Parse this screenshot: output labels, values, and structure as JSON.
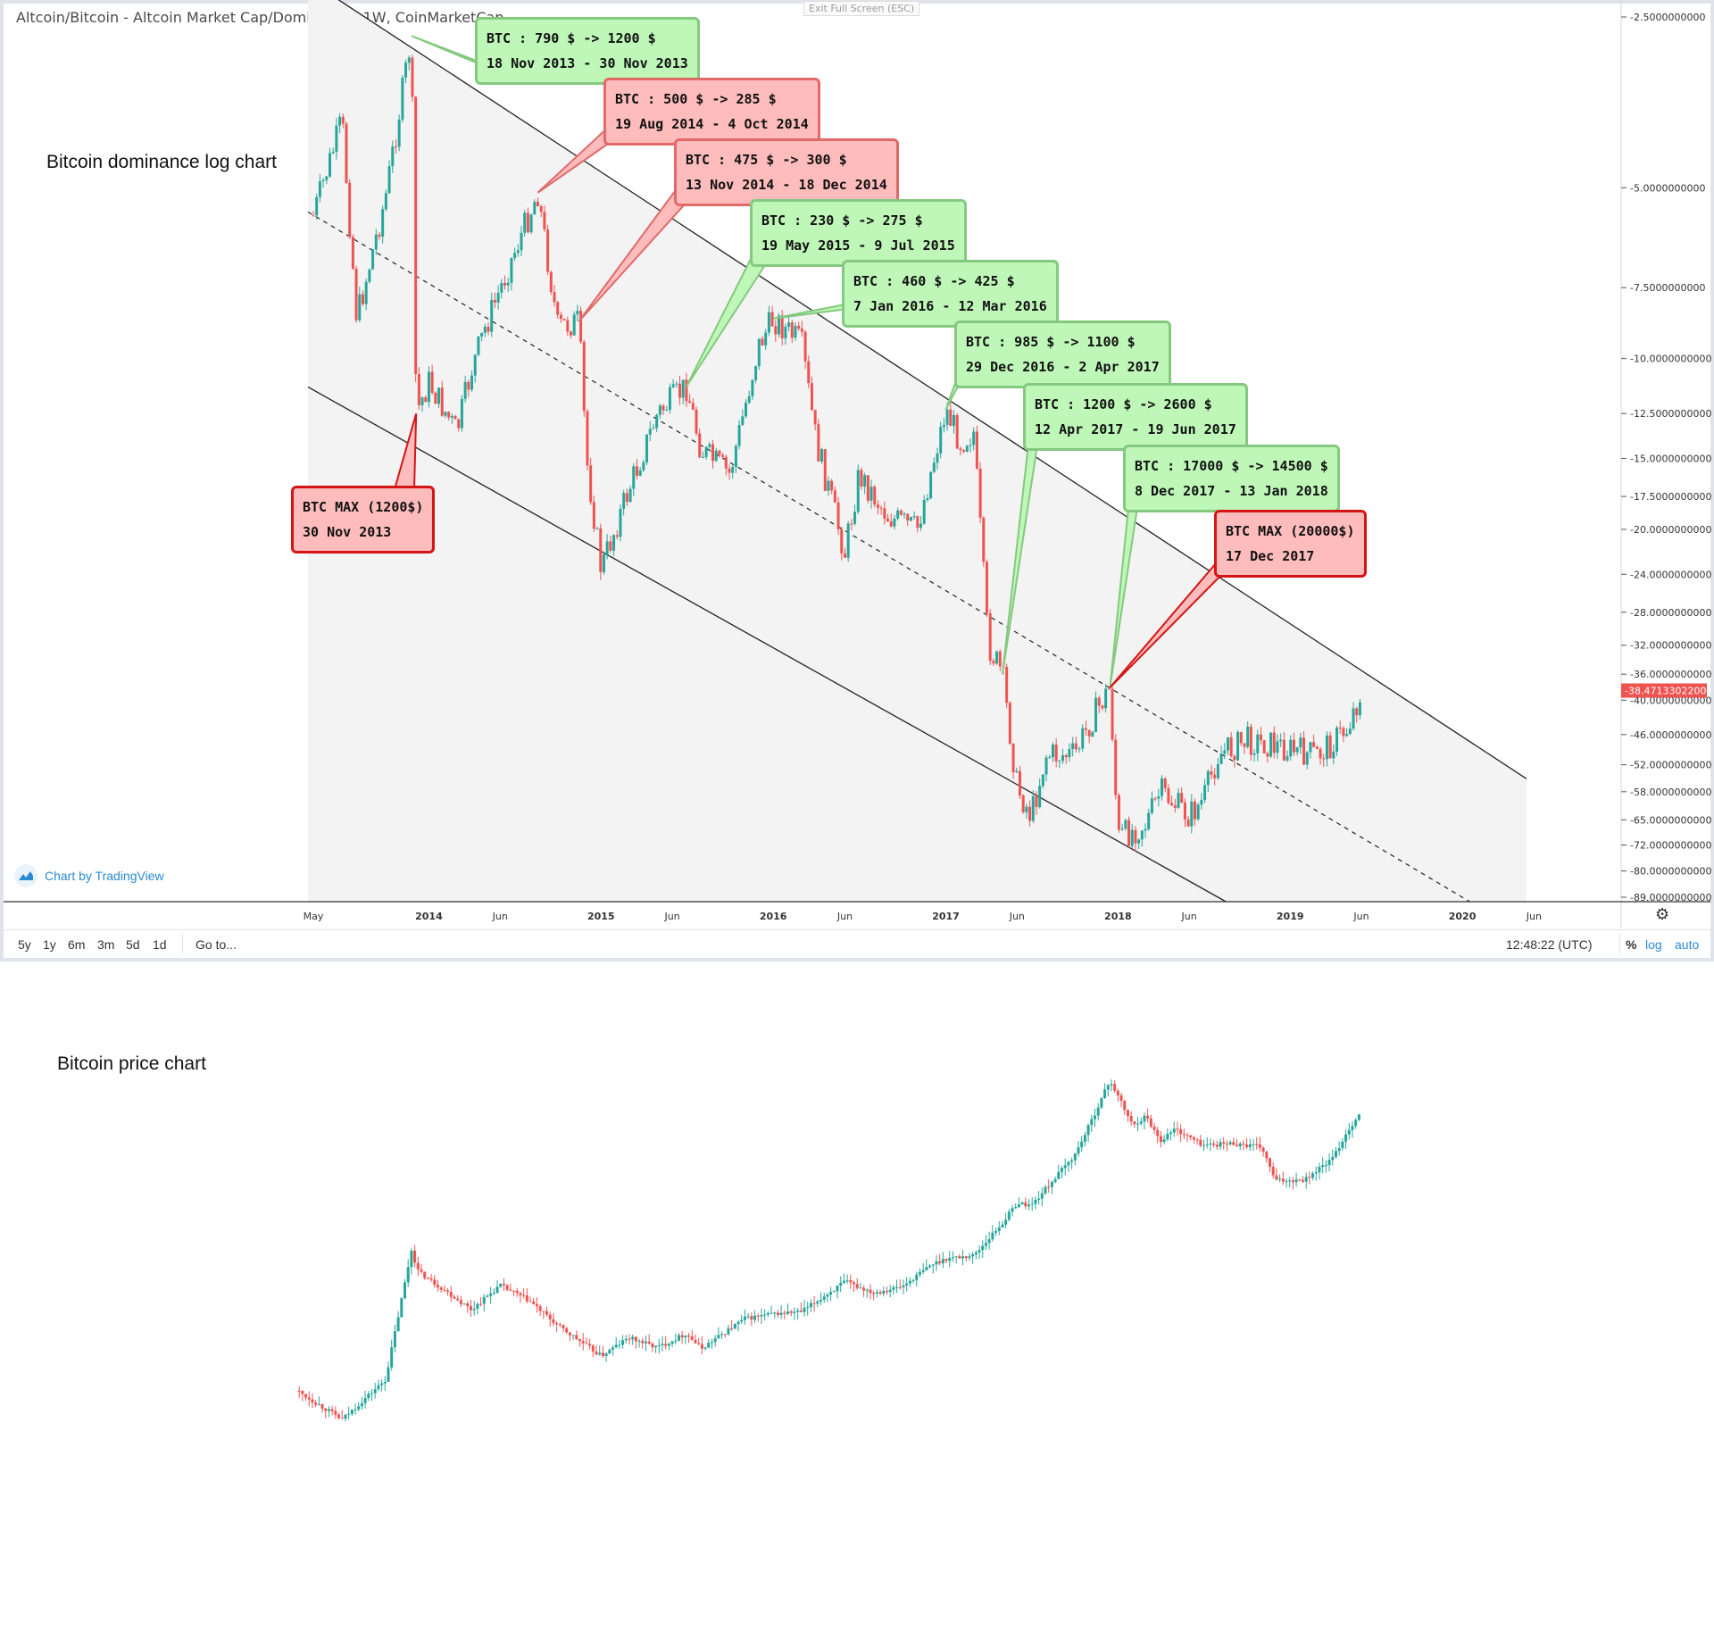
{
  "window": {
    "title": "Altcoin/Bitcoin - Altcoin Market Cap/Dominance, 1W, CoinMarketCap",
    "exit_fullscreen": "Exit Full Screen (ESC)",
    "side_label": "Bitcoin dominance log chart",
    "watermark": "Chart by TradingView"
  },
  "toolbar": {
    "timeframes": [
      "5y",
      "1y",
      "6m",
      "3m",
      "5d",
      "1d"
    ],
    "goto": "Go to...",
    "clock": "12:48:22 (UTC)",
    "percent": "%",
    "log": "log",
    "auto": "auto"
  },
  "colors": {
    "up": "#26a69a",
    "down": "#ef5350",
    "channel_fill": "#f3f3f3",
    "green_callout": "#bff7b9",
    "red_callout": "#ffbcbc",
    "price_tag": "#ef5350"
  },
  "chart_data": [
    {
      "type": "candlestick",
      "scale": "log",
      "interval": "1W",
      "y_axis_labels": [
        "-2.5000000000",
        "-5.0000000000",
        "-7.5000000000",
        "-10.0000000000",
        "-12.5000000000",
        "-15.0000000000",
        "-17.5000000000",
        "-20.0000000000",
        "-24.0000000000",
        "-28.0000000000",
        "-32.0000000000",
        "-36.0000000000",
        "-40.0000000000",
        "-46.0000000000",
        "-52.0000000000",
        "-58.0000000000",
        "-65.0000000000",
        "-72.0000000000",
        "-80.0000000000",
        "-89.0000000000"
      ],
      "x_axis_labels": [
        "May",
        "2014",
        "Jun",
        "2015",
        "Jun",
        "2016",
        "Jun",
        "2017",
        "Jun",
        "2018",
        "Jun",
        "2019",
        "Jun",
        "2020",
        "Jun"
      ],
      "last_value": "-38.4713302200",
      "path": [
        [
          "2013-05",
          -5.6
        ],
        [
          "2013-07",
          -3.8
        ],
        [
          "2013-08",
          -8.5
        ],
        [
          "2013-10",
          -5.2
        ],
        [
          "2013-11-25",
          -2.7
        ],
        [
          "2013-12-05",
          -12.5
        ],
        [
          "2014-01",
          -11.0
        ],
        [
          "2014-03",
          -13.5
        ],
        [
          "2014-04",
          -10.5
        ],
        [
          "2014-05",
          -8.8
        ],
        [
          "2014-07",
          -6.5
        ],
        [
          "2014-08-20",
          -5.1
        ],
        [
          "2014-10",
          -8.8
        ],
        [
          "2014-11-15",
          -8.6
        ],
        [
          "2014-12",
          -15
        ],
        [
          "2015-01",
          -23.5
        ],
        [
          "2015-03",
          -17
        ],
        [
          "2015-05",
          -12.5
        ],
        [
          "2015-07",
          -11.2
        ],
        [
          "2015-08",
          -14.5
        ],
        [
          "2015-10",
          -16
        ],
        [
          "2015-12",
          -9.5
        ],
        [
          "2016-01",
          -8.5
        ],
        [
          "2016-03",
          -9.4
        ],
        [
          "2016-04",
          -14
        ],
        [
          "2016-06",
          -22
        ],
        [
          "2016-07",
          -16
        ],
        [
          "2016-09",
          -19
        ],
        [
          "2016-11",
          -20
        ],
        [
          "2017-01",
          -12.3
        ],
        [
          "2017-02",
          -14
        ],
        [
          "2017-03",
          -13.5
        ],
        [
          "2017-04",
          -32
        ],
        [
          "2017-05",
          -36
        ],
        [
          "2017-06",
          -57
        ],
        [
          "2017-07",
          -64
        ],
        [
          "2017-08",
          -50
        ],
        [
          "2017-10",
          -50
        ],
        [
          "2017-11",
          -44
        ],
        [
          "2017-12-15",
          -38
        ],
        [
          "2018-01",
          -70
        ],
        [
          "2018-03",
          -66
        ],
        [
          "2018-04",
          -58
        ],
        [
          "2018-06",
          -64
        ],
        [
          "2018-07",
          -60
        ],
        [
          "2018-08",
          -50
        ],
        [
          "2018-10",
          -47
        ],
        [
          "2018-12",
          -48
        ],
        [
          "2019-01",
          -49
        ],
        [
          "2019-03",
          -50
        ],
        [
          "2019-05",
          -45
        ],
        [
          "2019-06",
          -38.5
        ]
      ],
      "channel": {
        "upper": [
          [
            "2013-04",
            -2.1
          ],
          [
            "2020-04",
            -52
          ]
        ],
        "mid": [
          [
            "2013-04",
            -5.4
          ],
          [
            "2020-01",
            -89
          ]
        ],
        "lower": [
          [
            "2013-04",
            -11.0
          ],
          [
            "2018-08",
            -89
          ]
        ]
      },
      "annotations": [
        {
          "id": "a1",
          "lines": [
            "BTC : 790 $ -> 1200 $",
            "18 Nov 2013 - 30 Nov 2013"
          ],
          "color": "green"
        },
        {
          "id": "a2",
          "lines": [
            "BTC : 500 $ -> 285 $",
            "19 Aug 2014 - 4 Oct 2014"
          ],
          "color": "red"
        },
        {
          "id": "a3",
          "lines": [
            "BTC : 475 $ -> 300 $",
            "13 Nov 2014 - 18 Dec 2014"
          ],
          "color": "red"
        },
        {
          "id": "a4",
          "lines": [
            "BTC : 230 $ -> 275 $",
            "19 May 2015 - 9 Jul 2015"
          ],
          "color": "green"
        },
        {
          "id": "a5",
          "lines": [
            "BTC : 460 $ -> 425 $",
            "7 Jan 2016 - 12 Mar 2016"
          ],
          "color": "green"
        },
        {
          "id": "a6",
          "lines": [
            "BTC : 985 $ -> 1100 $",
            "29 Dec 2016 - 2 Apr 2017"
          ],
          "color": "green"
        },
        {
          "id": "a7",
          "lines": [
            "BTC : 1200 $ -> 2600 $",
            "12 Apr 2017 - 19 Jun 2017"
          ],
          "color": "green"
        },
        {
          "id": "a8",
          "lines": [
            "BTC : 17000 $ -> 14500 $",
            "8 Dec 2017 - 13 Jan 2018"
          ],
          "color": "green"
        },
        {
          "id": "a9",
          "lines": [
            "BTC MAX (20000$)",
            "17 Dec 2017"
          ],
          "color": "redmax"
        },
        {
          "id": "a10",
          "lines": [
            "BTC MAX (1200$)",
            "30 Nov 2013"
          ],
          "color": "redmax"
        }
      ]
    },
    {
      "type": "candlestick",
      "scale": "log",
      "title": "Bitcoin price chart",
      "path": [
        [
          "2013-04",
          110
        ],
        [
          "2013-07",
          70
        ],
        [
          "2013-10",
          135
        ],
        [
          "2013-11-25",
          1150
        ],
        [
          "2013-12-10",
          800
        ],
        [
          "2014-02",
          600
        ],
        [
          "2014-04",
          430
        ],
        [
          "2014-06",
          640
        ],
        [
          "2014-08",
          500
        ],
        [
          "2014-10",
          330
        ],
        [
          "2015-01",
          200
        ],
        [
          "2015-03",
          270
        ],
        [
          "2015-05",
          230
        ],
        [
          "2015-07",
          290
        ],
        [
          "2015-08",
          225
        ],
        [
          "2015-11",
          370
        ],
        [
          "2016-01",
          400
        ],
        [
          "2016-03",
          415
        ],
        [
          "2016-06",
          680
        ],
        [
          "2016-08",
          570
        ],
        [
          "2016-10",
          630
        ],
        [
          "2016-12",
          900
        ],
        [
          "2017-01",
          1000
        ],
        [
          "2017-03",
          1050
        ],
        [
          "2017-05",
          1800
        ],
        [
          "2017-06",
          2500
        ],
        [
          "2017-07",
          2400
        ],
        [
          "2017-09",
          4200
        ],
        [
          "2017-10",
          5500
        ],
        [
          "2017-11",
          9000
        ],
        [
          "2017-12-15",
          19000
        ],
        [
          "2018-02",
          9000
        ],
        [
          "2018-03",
          10500
        ],
        [
          "2018-04",
          7000
        ],
        [
          "2018-05",
          8500
        ],
        [
          "2018-07",
          6500
        ],
        [
          "2018-09",
          6700
        ],
        [
          "2018-11",
          6300
        ],
        [
          "2018-12",
          3600
        ],
        [
          "2019-02",
          3700
        ],
        [
          "2019-04",
          5200
        ],
        [
          "2019-05",
          8000
        ],
        [
          "2019-06",
          11500
        ]
      ]
    }
  ]
}
